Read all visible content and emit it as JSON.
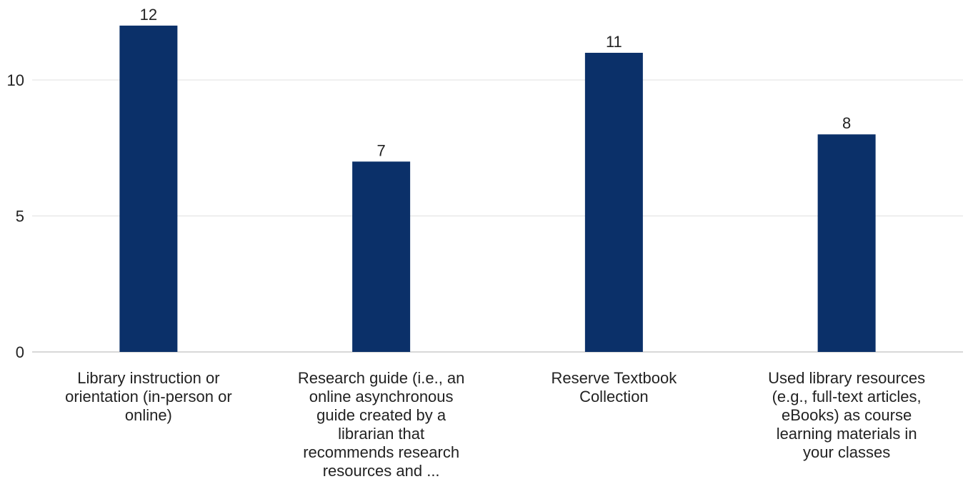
{
  "chart_data": {
    "type": "bar",
    "title": "",
    "xlabel": "",
    "ylabel": "",
    "categories": [
      {
        "label": "Library instruction or orientation (in-person or online)",
        "lines": [
          "Library instruction or",
          "orientation (in-person or",
          "online)"
        ]
      },
      {
        "label": "Research guide (i.e., an online asynchronous guide created by a librarian that recommends research resources and ...",
        "lines": [
          "Research guide (i.e., an",
          "online asynchronous",
          "guide created by a",
          "librarian that",
          "recommends research",
          "resources and ..."
        ]
      },
      {
        "label": "Reserve Textbook Collection",
        "lines": [
          "Reserve Textbook",
          "Collection"
        ]
      },
      {
        "label": "Used library resources (e.g., full-text articles, eBooks) as course learning materials in your classes",
        "lines": [
          "Used library resources",
          "(e.g., full-text articles,",
          "eBooks) as course",
          "learning materials in",
          "your classes"
        ]
      }
    ],
    "values": [
      12,
      7,
      11,
      8
    ],
    "data_labels": [
      "12",
      "7",
      "11",
      "8"
    ],
    "y_ticks": [
      0,
      5,
      10
    ],
    "y_tick_labels": [
      "0",
      "5",
      "10"
    ],
    "ylim": [
      0,
      12.6
    ],
    "grid": true,
    "legend": "none",
    "bar_color": "#0b3069"
  }
}
